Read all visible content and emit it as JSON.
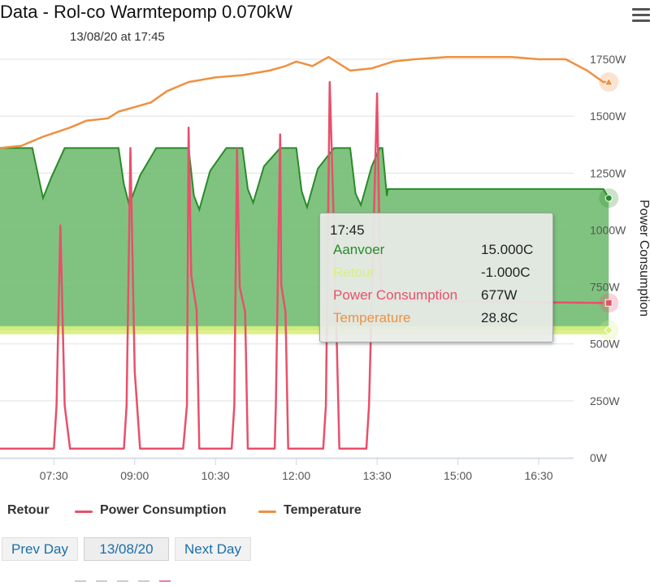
{
  "header": {
    "title": "Data - Rol-co Warmtepomp 0.070kW",
    "subtitle": "13/08/20 at 17:45"
  },
  "chart_data": {
    "type": "area",
    "x_unit": "time of day (decimal hours)",
    "x_ticks": [
      "07:30",
      "09:00",
      "10:30",
      "12:00",
      "13:30",
      "15:00",
      "16:30"
    ],
    "y_ticks": [
      "0W",
      "250W",
      "500W",
      "750W",
      "1000W",
      "1250W",
      "1500W",
      "1750W"
    ],
    "y_axis_title": "Power Consumption",
    "ylim": [
      0,
      1750
    ],
    "xlim": [
      6.5,
      18.0
    ],
    "grid": true,
    "series": [
      {
        "name": "Aanvoer",
        "type": "area",
        "color": "#2a8a2a",
        "fill": "#6ab86a",
        "values": [
          [
            6.5,
            1360
          ],
          [
            7.1,
            1360
          ],
          [
            7.2,
            1250
          ],
          [
            7.3,
            1140
          ],
          [
            7.45,
            1230
          ],
          [
            7.7,
            1360
          ],
          [
            8.7,
            1360
          ],
          [
            8.8,
            1200
          ],
          [
            8.9,
            1110
          ],
          [
            9.1,
            1240
          ],
          [
            9.4,
            1360
          ],
          [
            10.0,
            1360
          ],
          [
            10.1,
            1150
          ],
          [
            10.2,
            1090
          ],
          [
            10.4,
            1260
          ],
          [
            10.7,
            1360
          ],
          [
            11.0,
            1360
          ],
          [
            11.1,
            1180
          ],
          [
            11.2,
            1120
          ],
          [
            11.4,
            1280
          ],
          [
            11.7,
            1360
          ],
          [
            12.0,
            1360
          ],
          [
            12.1,
            1170
          ],
          [
            12.2,
            1100
          ],
          [
            12.4,
            1270
          ],
          [
            12.7,
            1360
          ],
          [
            13.0,
            1360
          ],
          [
            13.1,
            1160
          ],
          [
            13.2,
            1110
          ],
          [
            13.4,
            1280
          ],
          [
            13.55,
            1360
          ],
          [
            13.6,
            1360
          ],
          [
            13.68,
            1150
          ],
          [
            13.7,
            1180
          ],
          [
            17.7,
            1180
          ],
          [
            17.8,
            1140
          ]
        ]
      },
      {
        "name": "Retour",
        "type": "line",
        "color": "#d8f080",
        "values": [
          [
            6.5,
            560
          ],
          [
            17.8,
            560
          ]
        ]
      },
      {
        "name": "Power Consumption",
        "type": "line",
        "color": "#e8506a",
        "values": [
          [
            6.5,
            40
          ],
          [
            7.5,
            40
          ],
          [
            7.55,
            230
          ],
          [
            7.62,
            1020
          ],
          [
            7.7,
            230
          ],
          [
            7.8,
            40
          ],
          [
            8.8,
            40
          ],
          [
            8.85,
            230
          ],
          [
            8.92,
            1360
          ],
          [
            9.0,
            380
          ],
          [
            9.1,
            40
          ],
          [
            9.9,
            40
          ],
          [
            9.97,
            230
          ],
          [
            10.0,
            1450
          ],
          [
            10.05,
            800
          ],
          [
            10.15,
            650
          ],
          [
            10.2,
            40
          ],
          [
            10.8,
            40
          ],
          [
            10.85,
            230
          ],
          [
            10.9,
            1360
          ],
          [
            10.95,
            750
          ],
          [
            11.05,
            640
          ],
          [
            11.1,
            40
          ],
          [
            11.6,
            40
          ],
          [
            11.62,
            230
          ],
          [
            11.7,
            1420
          ],
          [
            11.72,
            760
          ],
          [
            11.8,
            640
          ],
          [
            11.85,
            40
          ],
          [
            12.5,
            40
          ],
          [
            12.55,
            230
          ],
          [
            12.62,
            1650
          ],
          [
            12.7,
            1000
          ],
          [
            12.8,
            40
          ],
          [
            13.3,
            40
          ],
          [
            13.35,
            230
          ],
          [
            13.5,
            1600
          ],
          [
            13.55,
            900
          ],
          [
            13.6,
            690
          ],
          [
            17.7,
            680
          ]
        ]
      },
      {
        "name": "Temperature",
        "type": "line",
        "color": "#ef9040",
        "values": [
          [
            6.5,
            1360
          ],
          [
            6.9,
            1370
          ],
          [
            7.3,
            1410
          ],
          [
            7.8,
            1450
          ],
          [
            8.1,
            1480
          ],
          [
            8.5,
            1490
          ],
          [
            8.7,
            1520
          ],
          [
            9.0,
            1540
          ],
          [
            9.3,
            1560
          ],
          [
            9.6,
            1610
          ],
          [
            9.9,
            1640
          ],
          [
            10.0,
            1650
          ],
          [
            10.5,
            1670
          ],
          [
            11.0,
            1680
          ],
          [
            11.5,
            1700
          ],
          [
            11.8,
            1720
          ],
          [
            12.0,
            1740
          ],
          [
            12.3,
            1720
          ],
          [
            12.6,
            1760
          ],
          [
            13.0,
            1700
          ],
          [
            13.4,
            1710
          ],
          [
            13.8,
            1740
          ],
          [
            14.2,
            1750
          ],
          [
            14.8,
            1760
          ],
          [
            15.5,
            1760
          ],
          [
            16.0,
            1760
          ],
          [
            16.5,
            1750
          ],
          [
            17.0,
            1750
          ],
          [
            17.4,
            1700
          ],
          [
            17.7,
            1650
          ],
          [
            17.8,
            1650
          ]
        ]
      }
    ],
    "end_markers": [
      {
        "series": "Aanvoer",
        "x": 17.8,
        "y": 1140,
        "shape": "circle"
      },
      {
        "series": "Retour",
        "x": 17.8,
        "y": 560,
        "shape": "diamond"
      },
      {
        "series": "Power Consumption",
        "x": 17.8,
        "y": 680,
        "shape": "square"
      },
      {
        "series": "Temperature",
        "x": 17.8,
        "y": 1650,
        "shape": "triangle"
      }
    ],
    "tooltip": {
      "time": "17:45",
      "rows": [
        {
          "name": "Aanvoer",
          "value": "15.000C",
          "color": "#2a8a2a"
        },
        {
          "name": "Retour",
          "value": "-1.000C",
          "color": "#d8f080"
        },
        {
          "name": "Power Consumption",
          "value": "677W",
          "color": "#e8506a"
        },
        {
          "name": "Temperature",
          "value": "28.8C",
          "color": "#ef9040"
        }
      ]
    }
  },
  "legend": {
    "items": [
      {
        "label": "Retour",
        "color": "#d8f080"
      },
      {
        "label": "Power Consumption",
        "color": "#e8506a"
      },
      {
        "label": "Temperature",
        "color": "#ef9040"
      }
    ]
  },
  "nav": {
    "prev_label": "Prev Day",
    "date_label": "13/08/20",
    "next_label": "Next Day"
  }
}
